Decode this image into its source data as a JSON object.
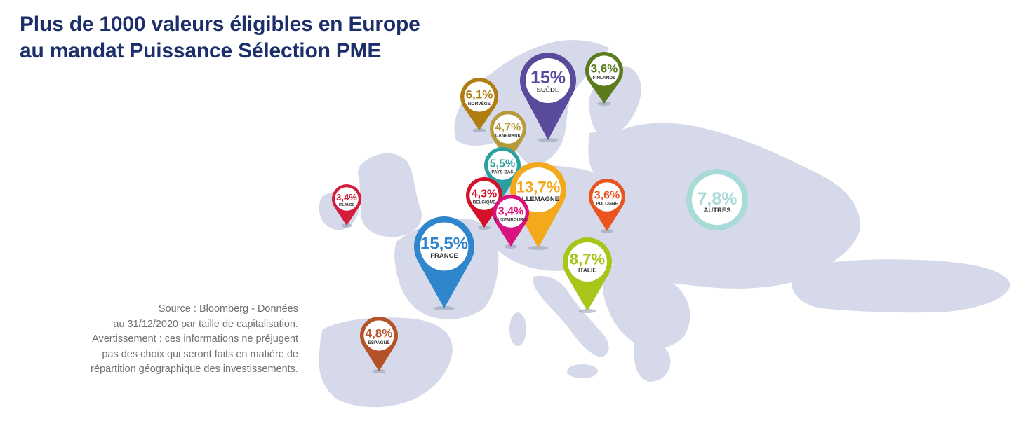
{
  "title": {
    "line1": "Plus de 1000 valeurs éligibles en Europe",
    "line2": "au mandat Puissance Sélection PME"
  },
  "source": {
    "lines": [
      "Source : Bloomberg - Données",
      "au 31/12/2020 par taille de capitalisation.",
      "Avertissement : ces informations ne préjugent",
      "pas des choix qui seront faits en matière de",
      "répartition géographique des investissements."
    ]
  },
  "colors": {
    "land": "#d5d9ea",
    "title": "#1c2f6b"
  },
  "markers": [
    {
      "id": "suede",
      "pct": "15%",
      "country": "SUÈDE",
      "color": "#5a4a9c"
    },
    {
      "id": "finlande",
      "pct": "3,6%",
      "country": "FINLANDE",
      "color": "#5c7a1e"
    },
    {
      "id": "norvege",
      "pct": "6,1%",
      "country": "NORVÈGE",
      "color": "#b07d10"
    },
    {
      "id": "danemark",
      "pct": "4,7%",
      "country": "DANEMARK",
      "color": "#b79a3a"
    },
    {
      "id": "pays-bas",
      "pct": "5,5%",
      "country": "PAYS-BAS",
      "color": "#2aa1a0"
    },
    {
      "id": "irlande",
      "pct": "3,4%",
      "country": "IRLANDE",
      "color": "#d21e3c"
    },
    {
      "id": "belgique",
      "pct": "4,3%",
      "country": "BELGIQUE",
      "color": "#d4102a"
    },
    {
      "id": "allemagne",
      "pct": "13,7%",
      "country": "ALLEMAGNE",
      "color": "#f4a81c"
    },
    {
      "id": "luxembourg",
      "pct": "3,4%",
      "country": "LUXEMBOURG",
      "color": "#d8127e"
    },
    {
      "id": "pologne",
      "pct": "3,6%",
      "country": "POLOGNE",
      "color": "#e9541f"
    },
    {
      "id": "france",
      "pct": "15,5%",
      "country": "FRANCE",
      "color": "#2f86cc"
    },
    {
      "id": "italie",
      "pct": "8,7%",
      "country": "ITALIE",
      "color": "#a8c51a"
    },
    {
      "id": "espagne",
      "pct": "4,8%",
      "country": "ESPAGNE",
      "color": "#b4522a"
    }
  ],
  "autres": {
    "pct": "7,8%",
    "label": "AUTRES",
    "color": "#a8dad8"
  }
}
